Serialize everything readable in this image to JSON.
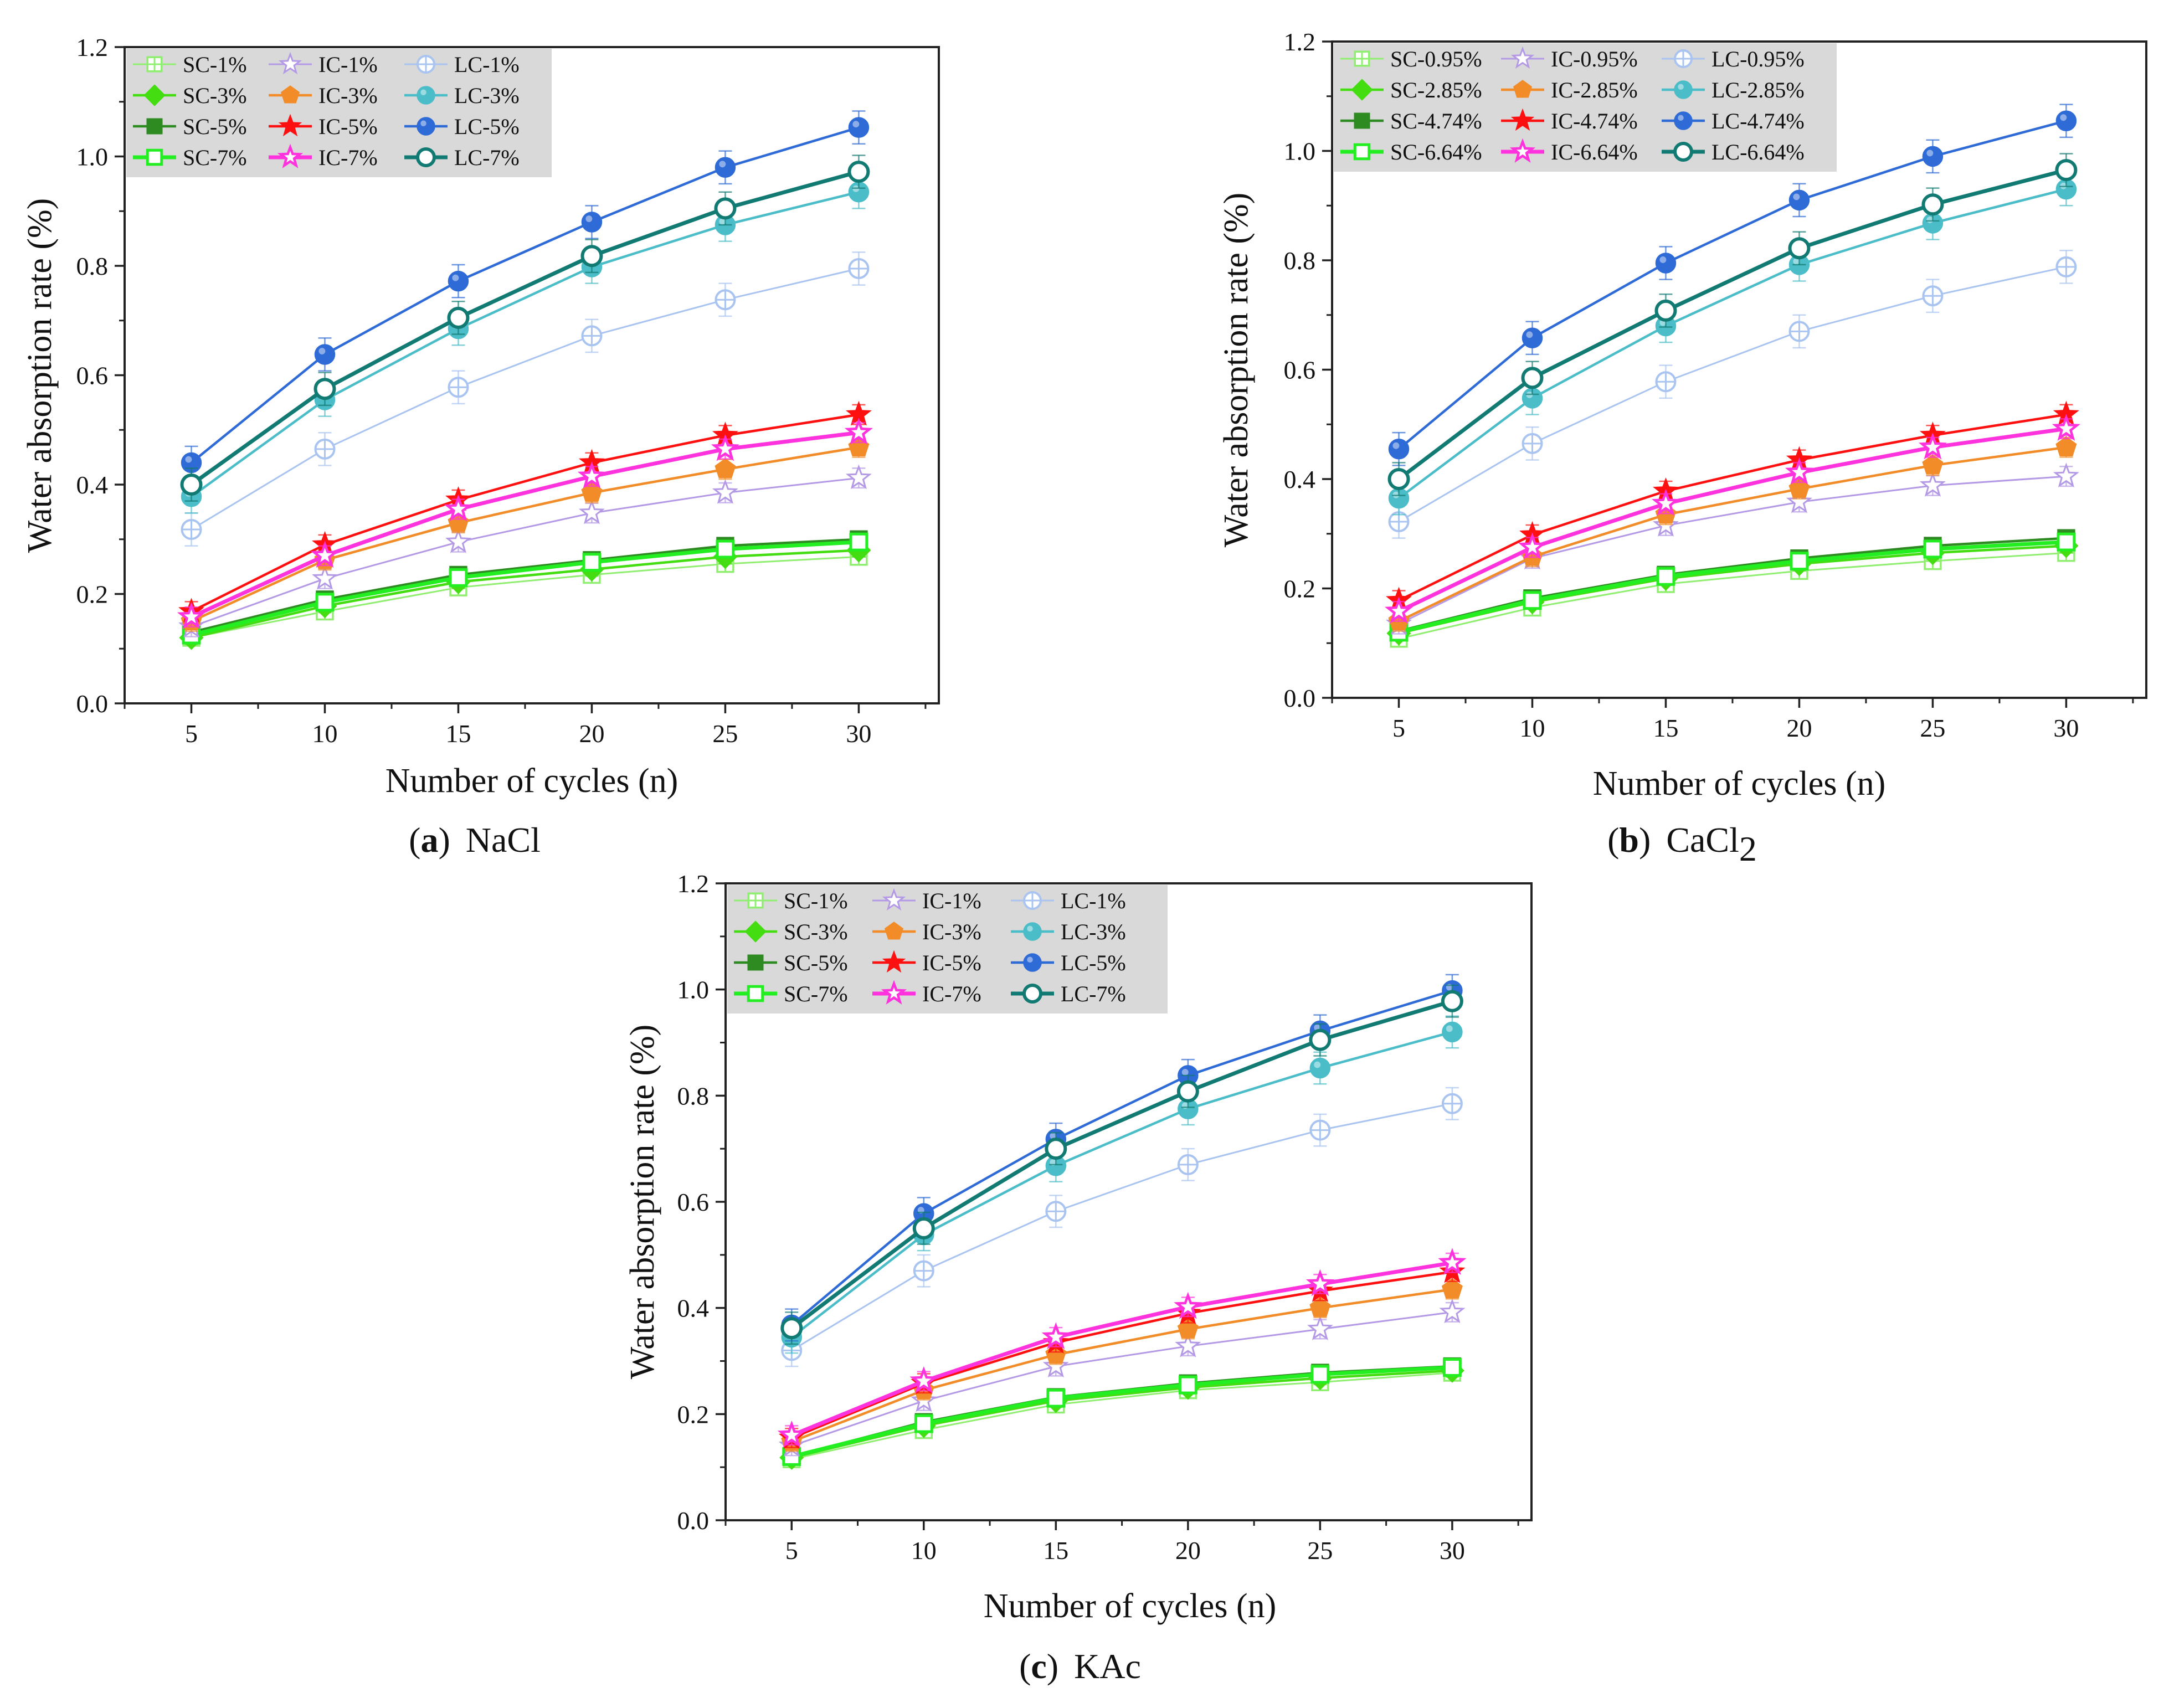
{
  "figure": {
    "panels": [
      {
        "letter": "a",
        "open": "(",
        "close": ")",
        "title": "NaCl",
        "title_sub": ""
      },
      {
        "letter": "b",
        "open": "(",
        "close": ")",
        "title": "CaCl",
        "title_sub": "2"
      },
      {
        "letter": "c",
        "open": "(",
        "close": ")",
        "title": "KAc",
        "title_sub": ""
      }
    ]
  },
  "styles": {
    "SC1": {
      "color": "#90EE70",
      "marker": "circle-plus-square",
      "fill": "none",
      "width": "thin"
    },
    "SC2": {
      "color": "#44DD11",
      "marker": "diamond",
      "fill": "solid",
      "width": "medium"
    },
    "SC3": {
      "color": "#2E8B22",
      "marker": "square",
      "fill": "solid",
      "width": "medium"
    },
    "SC4": {
      "color": "#22EE22",
      "marker": "square",
      "fill": "none",
      "width": "thick"
    },
    "IC1": {
      "color": "#B49AE6",
      "marker": "star",
      "fill": "outline",
      "width": "thin"
    },
    "IC2": {
      "color": "#F28C28",
      "marker": "pentagon",
      "fill": "solid",
      "width": "medium"
    },
    "IC3": {
      "color": "#FF1010",
      "marker": "star",
      "fill": "solid",
      "width": "medium"
    },
    "IC4": {
      "color": "#FF33DD",
      "marker": "star",
      "fill": "none",
      "width": "thick"
    },
    "LC1": {
      "color": "#A9C4F0",
      "marker": "circle-plus",
      "fill": "none",
      "width": "thin"
    },
    "LC2": {
      "color": "#4BBDC8",
      "marker": "circle",
      "fill": "solid",
      "width": "medium"
    },
    "LC3": {
      "color": "#2F6BD6",
      "marker": "circle",
      "fill": "solid",
      "width": "medium"
    },
    "LC4": {
      "color": "#117A72",
      "marker": "circle",
      "fill": "none",
      "width": "thick"
    }
  },
  "chart_data": [
    {
      "type": "line",
      "title": "NaCl",
      "xlabel": "Number of cycles (n)",
      "ylabel": "Water absorption rate (%)",
      "x": [
        5,
        10,
        15,
        20,
        25,
        30
      ],
      "xticks": [
        "5",
        "10",
        "15",
        "20",
        "25",
        "30"
      ],
      "xlim": [
        2.5,
        33
      ],
      "ylim": [
        0,
        1.2
      ],
      "yticks": [
        "0.0",
        "0.2",
        "0.4",
        "0.6",
        "0.8",
        "1.0",
        "1.2"
      ],
      "legend_position": "top-left",
      "series": [
        {
          "name": "SC-1%",
          "style": "SC1",
          "values": [
            0.12,
            0.168,
            0.212,
            0.235,
            0.255,
            0.268
          ],
          "err": 0.012
        },
        {
          "name": "SC-3%",
          "style": "SC2",
          "values": [
            0.12,
            0.178,
            0.222,
            0.245,
            0.268,
            0.28
          ],
          "err": 0.012
        },
        {
          "name": "SC-5%",
          "style": "SC3",
          "values": [
            0.13,
            0.19,
            0.235,
            0.262,
            0.288,
            0.3
          ],
          "err": 0.012
        },
        {
          "name": "SC-7%",
          "style": "SC4",
          "values": [
            0.125,
            0.185,
            0.23,
            0.258,
            0.282,
            0.295
          ],
          "err": 0.012
        },
        {
          "name": "IC-1%",
          "style": "IC1",
          "values": [
            0.14,
            0.228,
            0.295,
            0.348,
            0.385,
            0.412
          ],
          "err": 0.018
        },
        {
          "name": "IC-3%",
          "style": "IC2",
          "values": [
            0.15,
            0.262,
            0.33,
            0.385,
            0.428,
            0.468
          ],
          "err": 0.018
        },
        {
          "name": "IC-5%",
          "style": "IC3",
          "values": [
            0.168,
            0.29,
            0.372,
            0.44,
            0.49,
            0.528
          ],
          "err": 0.018
        },
        {
          "name": "IC-7%",
          "style": "IC4",
          "values": [
            0.158,
            0.27,
            0.355,
            0.415,
            0.465,
            0.495
          ],
          "err": 0.018
        },
        {
          "name": "LC-1%",
          "style": "LC1",
          "values": [
            0.318,
            0.465,
            0.578,
            0.672,
            0.738,
            0.795
          ],
          "err": 0.03
        },
        {
          "name": "LC-3%",
          "style": "LC2",
          "values": [
            0.378,
            0.555,
            0.685,
            0.798,
            0.875,
            0.935
          ],
          "err": 0.03
        },
        {
          "name": "LC-5%",
          "style": "LC3",
          "values": [
            0.44,
            0.638,
            0.772,
            0.88,
            0.98,
            1.053
          ],
          "err": 0.03
        },
        {
          "name": "LC-7%",
          "style": "LC4",
          "values": [
            0.4,
            0.575,
            0.705,
            0.818,
            0.905,
            0.972
          ],
          "err": 0.03
        }
      ]
    },
    {
      "type": "line",
      "title": "CaCl2",
      "xlabel": "Number of cycles (n)",
      "ylabel": "Water absorption rate (%)",
      "x": [
        5,
        10,
        15,
        20,
        25,
        30
      ],
      "xticks": [
        "5",
        "10",
        "15",
        "20",
        "25",
        "30"
      ],
      "xlim": [
        2.5,
        33
      ],
      "ylim": [
        0,
        1.2
      ],
      "yticks": [
        "0.0",
        "0.2",
        "0.4",
        "0.6",
        "0.8",
        "1.0",
        "1.2"
      ],
      "legend_position": "top-left",
      "series": [
        {
          "name": "SC-0.95%",
          "style": "SC1",
          "values": [
            0.108,
            0.165,
            0.208,
            0.232,
            0.25,
            0.265
          ],
          "err": 0.012
        },
        {
          "name": "SC-2.85%",
          "style": "SC2",
          "values": [
            0.118,
            0.175,
            0.218,
            0.245,
            0.265,
            0.278
          ],
          "err": 0.012
        },
        {
          "name": "SC-4.74%",
          "style": "SC3",
          "values": [
            0.122,
            0.182,
            0.225,
            0.255,
            0.278,
            0.292
          ],
          "err": 0.012
        },
        {
          "name": "SC-6.64%",
          "style": "SC4",
          "values": [
            0.12,
            0.178,
            0.222,
            0.25,
            0.272,
            0.285
          ],
          "err": 0.012
        },
        {
          "name": "IC-0.95%",
          "style": "IC1",
          "values": [
            0.135,
            0.255,
            0.315,
            0.358,
            0.388,
            0.405
          ],
          "err": 0.018
        },
        {
          "name": "IC-2.85%",
          "style": "IC2",
          "values": [
            0.14,
            0.258,
            0.335,
            0.382,
            0.425,
            0.458
          ],
          "err": 0.018
        },
        {
          "name": "IC-4.74%",
          "style": "IC3",
          "values": [
            0.178,
            0.298,
            0.378,
            0.435,
            0.48,
            0.518
          ],
          "err": 0.018
        },
        {
          "name": "IC-6.64%",
          "style": "IC4",
          "values": [
            0.158,
            0.275,
            0.355,
            0.412,
            0.458,
            0.492
          ],
          "err": 0.018
        },
        {
          "name": "LC-0.95%",
          "style": "LC1",
          "values": [
            0.322,
            0.465,
            0.578,
            0.67,
            0.735,
            0.788
          ],
          "err": 0.03
        },
        {
          "name": "LC-2.85%",
          "style": "LC2",
          "values": [
            0.365,
            0.548,
            0.68,
            0.792,
            0.868,
            0.93
          ],
          "err": 0.03
        },
        {
          "name": "LC-4.74%",
          "style": "LC3",
          "values": [
            0.455,
            0.658,
            0.795,
            0.91,
            0.99,
            1.055
          ],
          "err": 0.03
        },
        {
          "name": "LC-6.64%",
          "style": "LC4",
          "values": [
            0.4,
            0.585,
            0.708,
            0.822,
            0.902,
            0.965
          ],
          "err": 0.03
        }
      ]
    },
    {
      "type": "line",
      "title": "KAc",
      "xlabel": "Number of cycles (n)",
      "ylabel": "Water absorption rate (%)",
      "x": [
        5,
        10,
        15,
        20,
        25,
        30
      ],
      "xticks": [
        "5",
        "10",
        "15",
        "20",
        "25",
        "30"
      ],
      "xlim": [
        2.5,
        33
      ],
      "ylim": [
        0,
        1.2
      ],
      "yticks": [
        "0.0",
        "0.2",
        "0.4",
        "0.6",
        "0.8",
        "1.0",
        "1.2"
      ],
      "legend_position": "top-left",
      "series": [
        {
          "name": "SC-1%",
          "style": "SC1",
          "values": [
            0.115,
            0.17,
            0.218,
            0.245,
            0.26,
            0.278
          ],
          "err": 0.012
        },
        {
          "name": "SC-3%",
          "style": "SC2",
          "values": [
            0.118,
            0.178,
            0.225,
            0.25,
            0.268,
            0.282
          ],
          "err": 0.012
        },
        {
          "name": "SC-5%",
          "style": "SC3",
          "values": [
            0.12,
            0.185,
            0.232,
            0.258,
            0.278,
            0.29
          ],
          "err": 0.012
        },
        {
          "name": "SC-7%",
          "style": "SC4",
          "values": [
            0.12,
            0.182,
            0.23,
            0.255,
            0.275,
            0.288
          ],
          "err": 0.012
        },
        {
          "name": "IC-1%",
          "style": "IC1",
          "values": [
            0.14,
            0.225,
            0.29,
            0.328,
            0.36,
            0.392
          ],
          "err": 0.018
        },
        {
          "name": "IC-3%",
          "style": "IC2",
          "values": [
            0.148,
            0.245,
            0.312,
            0.36,
            0.4,
            0.435
          ],
          "err": 0.018
        },
        {
          "name": "IC-5%",
          "style": "IC3",
          "values": [
            0.155,
            0.258,
            0.335,
            0.39,
            0.432,
            0.468
          ],
          "err": 0.018
        },
        {
          "name": "IC-7%",
          "style": "IC4",
          "values": [
            0.16,
            0.262,
            0.345,
            0.402,
            0.445,
            0.485
          ],
          "err": 0.018
        },
        {
          "name": "LC-1%",
          "style": "LC1",
          "values": [
            0.32,
            0.47,
            0.582,
            0.67,
            0.735,
            0.785
          ],
          "err": 0.03
        },
        {
          "name": "LC-3%",
          "style": "LC2",
          "values": [
            0.345,
            0.538,
            0.668,
            0.775,
            0.852,
            0.92
          ],
          "err": 0.03
        },
        {
          "name": "LC-5%",
          "style": "LC3",
          "values": [
            0.368,
            0.578,
            0.718,
            0.838,
            0.922,
            0.998
          ],
          "err": 0.03
        },
        {
          "name": "LC-7%",
          "style": "LC4",
          "values": [
            0.362,
            0.55,
            0.7,
            0.808,
            0.905,
            0.978
          ],
          "err": 0.03
        }
      ]
    }
  ]
}
